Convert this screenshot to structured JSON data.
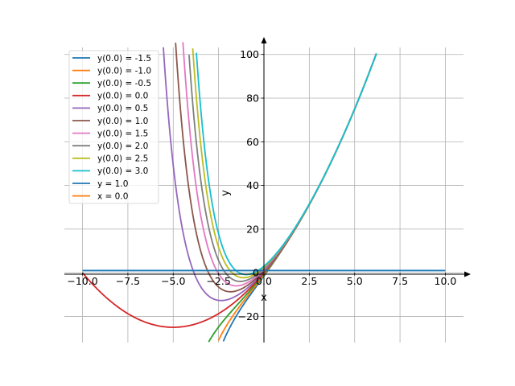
{
  "chart_data": {
    "type": "line",
    "xlabel": "x",
    "ylabel": "y",
    "xlim": [
      -11.0,
      11.0
    ],
    "ylim": [
      -32,
      108
    ],
    "grid": true,
    "legend_position": "top-left",
    "x_ticks": [
      {
        "value": -10.0,
        "label": "−10.0"
      },
      {
        "value": -7.5,
        "label": "−7.5"
      },
      {
        "value": -5.0,
        "label": "−5.0"
      },
      {
        "value": -2.5,
        "label": "−2.5"
      },
      {
        "value": 0.0,
        "label": "0.0"
      },
      {
        "value": 2.5,
        "label": "2.5"
      },
      {
        "value": 5.0,
        "label": "5.0"
      },
      {
        "value": 7.5,
        "label": "7.5"
      },
      {
        "value": 10.0,
        "label": "10.0"
      }
    ],
    "y_ticks": [
      {
        "value": -20,
        "label": "−20"
      },
      {
        "value": 0,
        "label": "0"
      },
      {
        "value": 20,
        "label": "20"
      },
      {
        "value": 40,
        "label": "40"
      },
      {
        "value": 60,
        "label": "60"
      },
      {
        "value": 80,
        "label": "80"
      },
      {
        "value": 100,
        "label": "100"
      }
    ],
    "series": [
      {
        "name": "y(0.0) = -1.5",
        "color": "#1f77b4",
        "kind": "curve",
        "y0": -1.5
      },
      {
        "name": "y(0.0) = -1.0",
        "color": "#ff7f0e",
        "kind": "curve",
        "y0": -1.0
      },
      {
        "name": "y(0.0) = -0.5",
        "color": "#2ca02c",
        "kind": "curve",
        "y0": -0.5
      },
      {
        "name": "y(0.0) = 0.0",
        "color": "#d62728",
        "kind": "curve",
        "y0": 0.0
      },
      {
        "name": "y(0.0) = 0.5",
        "color": "#9467bd",
        "kind": "curve",
        "y0": 0.5
      },
      {
        "name": "y(0.0) = 1.0",
        "color": "#8c564b",
        "kind": "curve",
        "y0": 1.0
      },
      {
        "name": "y(0.0) = 1.5",
        "color": "#e377c2",
        "kind": "curve",
        "y0": 1.5
      },
      {
        "name": "y(0.0) = 2.0",
        "color": "#7f7f7f",
        "kind": "curve",
        "y0": 2.0
      },
      {
        "name": "y(0.0) = 2.5",
        "color": "#bcbd22",
        "kind": "curve",
        "y0": 2.5
      },
      {
        "name": "y(0.0) = 3.0",
        "color": "#17becf",
        "kind": "curve",
        "y0": 3.0
      },
      {
        "name": "y = 1.0",
        "color": "#1f77b4",
        "kind": "hline",
        "y": 1.0,
        "x_range": [
          -10.0,
          10.0
        ]
      },
      {
        "name": "x = 0.0",
        "color": "#ff7f0e",
        "kind": "vline",
        "x": 0.0,
        "y_range": [
          -1.0,
          1.0
        ]
      }
    ],
    "curve_x_range": [
      -10.0,
      6.2
    ]
  }
}
